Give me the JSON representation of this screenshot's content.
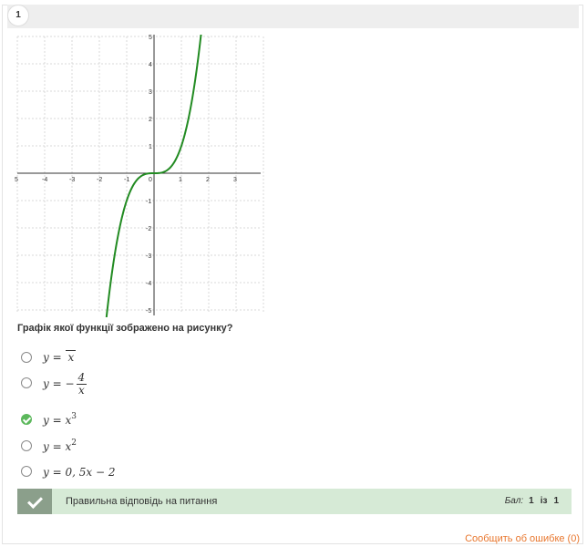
{
  "question_number": "1",
  "question_text": "Графік якої функції зображено на рисунку?",
  "chart_data": {
    "type": "line",
    "function": "y = x^3",
    "xlim": [
      -5,
      3.9
    ],
    "ylim": [
      -5,
      5
    ],
    "x_ticks": [
      "5",
      "-4",
      "-3",
      "-2",
      "-1",
      "0",
      "1",
      "2",
      "3"
    ],
    "y_ticks": [
      "5",
      "4",
      "3",
      "2",
      "1",
      "-1",
      "-2",
      "-3",
      "-4",
      "-5"
    ],
    "grid": true,
    "series_color": "#228b22"
  },
  "options": [
    {
      "formula": "y = √x",
      "checked": false
    },
    {
      "formula": "y = −4/x",
      "checked": false
    },
    {
      "formula": "y = x³",
      "checked": true
    },
    {
      "formula": "y = x²",
      "checked": false
    },
    {
      "formula": "y = 0,5x − 2",
      "checked": false
    }
  ],
  "feedback": {
    "text": "Правильна відповідь на питання",
    "score_label": "Бал:",
    "score_value": "1",
    "score_sep": "із",
    "score_max": "1"
  },
  "report_link": "Сообщить об ошибке (0)",
  "colors": {
    "accent_green": "#5cb85c",
    "feedback_bg": "#d6ead6",
    "link": "#e8762d"
  }
}
